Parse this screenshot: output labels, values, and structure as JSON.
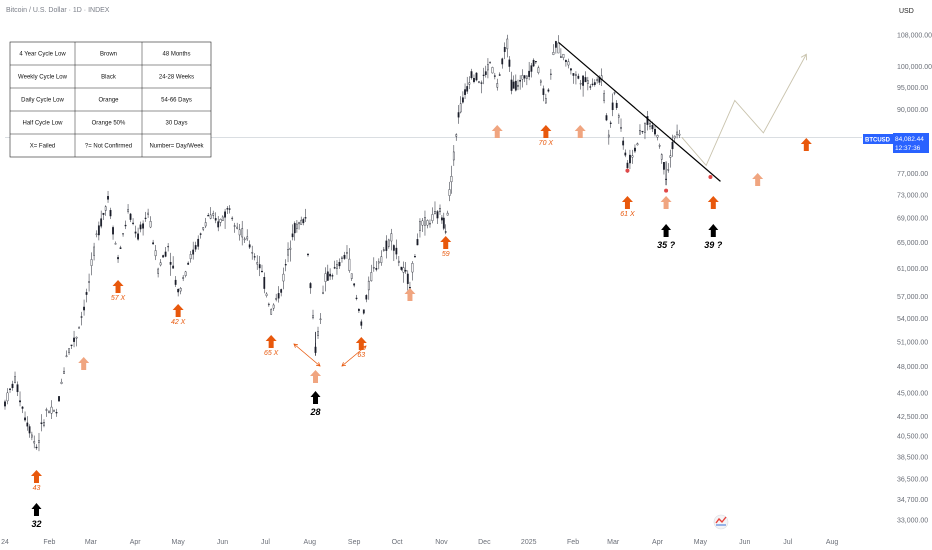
{
  "header": {
    "title": "Bitcoin / U.S. Dollar · 1D · INDEX",
    "currency": "USD"
  },
  "price_tag": {
    "symbol": "BTCUSD",
    "price": "84,082.44",
    "countdown": "12:37:36"
  },
  "legend_table": [
    [
      "4 Year Cycle Low",
      "Brown",
      "48 Months"
    ],
    [
      "Weekly Cycle Low",
      "Black",
      "24-28 Weeks"
    ],
    [
      "Daily Cycle Low",
      "Orange",
      "54-66 Days"
    ],
    [
      "Half Cycle Low",
      "Orange 50%",
      "30 Days"
    ],
    [
      "X= Failed",
      "?= Not Confirmed",
      "Number= Day/Week"
    ]
  ],
  "colors": {
    "orange": "#e8580c",
    "light_orange": "#f0a580",
    "black": "#000000",
    "price_line": "#c8cdd6",
    "tag": "#2962ff"
  },
  "annotations": [
    {
      "date": "2024-01-23",
      "text": "43",
      "color": "orange",
      "kind": "arrow"
    },
    {
      "date": "2024-01-23",
      "text": "32",
      "color": "black",
      "kind": "arrow"
    },
    {
      "date": "2024-02-25",
      "text": "",
      "color": "light_orange",
      "kind": "arrow"
    },
    {
      "date": "2024-03-20",
      "text": "57 X",
      "color": "orange",
      "kind": "arrow"
    },
    {
      "date": "2024-05-01",
      "text": "42 X",
      "color": "orange",
      "kind": "arrow"
    },
    {
      "date": "2024-07-05",
      "text": "65 X",
      "color": "orange",
      "kind": "arrow"
    },
    {
      "date": "2024-08-05",
      "text": "",
      "color": "light_orange",
      "kind": "arrow"
    },
    {
      "date": "2024-08-05",
      "text": "28",
      "color": "black",
      "kind": "arrow"
    },
    {
      "date": "2024-09-06",
      "text": "63",
      "color": "orange",
      "kind": "arrow"
    },
    {
      "date": "2024-10-10",
      "text": "",
      "color": "light_orange",
      "kind": "arrow"
    },
    {
      "date": "2024-11-04",
      "text": "59",
      "color": "orange",
      "kind": "arrow"
    },
    {
      "date": "2024-12-10",
      "text": "",
      "color": "light_orange",
      "kind": "arrow"
    },
    {
      "date": "2025-01-13",
      "text": "70 X",
      "color": "orange",
      "kind": "arrow"
    },
    {
      "date": "2025-02-06",
      "text": "",
      "color": "light_orange",
      "kind": "arrow"
    },
    {
      "date": "2025-03-11",
      "text": "61 X",
      "color": "orange",
      "kind": "arrow"
    },
    {
      "date": "2025-04-07",
      "text": "",
      "color": "light_orange",
      "kind": "arrow"
    },
    {
      "date": "2025-04-07",
      "text": "35 ?",
      "color": "black",
      "kind": "arrow"
    },
    {
      "date": "2025-05-10",
      "text": "",
      "color": "orange",
      "kind": "arrow"
    },
    {
      "date": "2025-05-10",
      "text": "39 ?",
      "color": "black",
      "kind": "arrow"
    },
    {
      "date": "2025-06-10",
      "text": "",
      "color": "light_orange",
      "kind": "arrow"
    },
    {
      "date": "2025-07-14",
      "text": "",
      "color": "orange",
      "kind": "arrow"
    }
  ],
  "chart_data": {
    "type": "line",
    "title": "Bitcoin / U.S. Dollar · 1D · INDEX",
    "xlabel": "",
    "ylabel": "",
    "log_scale": true,
    "ylim": [
      33000,
      112000
    ],
    "xlim": [
      "2024-01-01",
      "2025-08-31"
    ],
    "x_ticks": [
      "24",
      "Feb",
      "Mar",
      "Apr",
      "May",
      "Jun",
      "Jul",
      "Aug",
      "Sep",
      "Oct",
      "Nov",
      "Dec",
      "2025",
      "Feb",
      "Mar",
      "Apr",
      "May",
      "Jun",
      "Jul",
      "Aug"
    ],
    "y_ticks": [
      "108,000.00",
      "100,000.00",
      "95,000.00",
      "90,000.00",
      "84,082.44",
      "77,000.00",
      "73,000.00",
      "69,000.00",
      "65,000.00",
      "61,000.00",
      "57,000.00",
      "54,000.00",
      "51,000.00",
      "48,000.00",
      "45,000.00",
      "42,500.00",
      "40,500.00",
      "38,500.00",
      "36,500.00",
      "34,700.00",
      "33,000.00"
    ],
    "series": [
      {
        "values": [
          [
            "2024-01-01",
            44000
          ],
          [
            "2024-01-08",
            46500
          ],
          [
            "2024-01-15",
            42500
          ],
          [
            "2024-01-23",
            39500
          ],
          [
            "2024-01-30",
            43000
          ],
          [
            "2024-02-06",
            42800
          ],
          [
            "2024-02-13",
            49500
          ],
          [
            "2024-02-20",
            51800
          ],
          [
            "2024-02-27",
            57000
          ],
          [
            "2024-03-05",
            66000
          ],
          [
            "2024-03-13",
            72500
          ],
          [
            "2024-03-20",
            62500
          ],
          [
            "2024-03-27",
            70000
          ],
          [
            "2024-04-03",
            66000
          ],
          [
            "2024-04-10",
            70000
          ],
          [
            "2024-04-17",
            61000
          ],
          [
            "2024-04-24",
            64500
          ],
          [
            "2024-05-01",
            57500
          ],
          [
            "2024-05-08",
            62000
          ],
          [
            "2024-05-15",
            65000
          ],
          [
            "2024-05-22",
            69500
          ],
          [
            "2024-05-29",
            68000
          ],
          [
            "2024-06-06",
            71000
          ],
          [
            "2024-06-13",
            67000
          ],
          [
            "2024-06-20",
            64500
          ],
          [
            "2024-06-27",
            61500
          ],
          [
            "2024-07-05",
            55000
          ],
          [
            "2024-07-12",
            58000
          ],
          [
            "2024-07-20",
            67000
          ],
          [
            "2024-07-29",
            69000
          ],
          [
            "2024-08-05",
            50000
          ],
          [
            "2024-08-12",
            59500
          ],
          [
            "2024-08-20",
            61000
          ],
          [
            "2024-08-27",
            63500
          ],
          [
            "2024-09-06",
            53500
          ],
          [
            "2024-09-13",
            60000
          ],
          [
            "2024-09-20",
            63000
          ],
          [
            "2024-09-27",
            66000
          ],
          [
            "2024-10-04",
            61000
          ],
          [
            "2024-10-10",
            59000
          ],
          [
            "2024-10-17",
            67500
          ],
          [
            "2024-10-24",
            68500
          ],
          [
            "2024-10-31",
            70000
          ],
          [
            "2024-11-04",
            67500
          ],
          [
            "2024-11-08",
            76500
          ],
          [
            "2024-11-13",
            89000
          ],
          [
            "2024-11-22",
            98500
          ],
          [
            "2024-11-29",
            96000
          ],
          [
            "2024-12-05",
            101000
          ],
          [
            "2024-12-10",
            95500
          ],
          [
            "2024-12-17",
            106000
          ],
          [
            "2024-12-20",
            95500
          ],
          [
            "2024-12-26",
            96000
          ],
          [
            "2025-01-06",
            101500
          ],
          [
            "2025-01-13",
            92000
          ],
          [
            "2025-01-20",
            105500
          ],
          [
            "2025-01-27",
            101500
          ],
          [
            "2025-02-03",
            97500
          ],
          [
            "2025-02-13",
            96000
          ],
          [
            "2025-02-21",
            97000
          ],
          [
            "2025-02-26",
            84500
          ],
          [
            "2025-03-02",
            94000
          ],
          [
            "2025-03-11",
            78500
          ],
          [
            "2025-03-18",
            83000
          ],
          [
            "2025-03-25",
            87500
          ],
          [
            "2025-04-01",
            84500
          ],
          [
            "2025-04-07",
            76500
          ],
          [
            "2025-04-13",
            84500
          ],
          [
            "2025-04-18",
            84082.44
          ]
        ]
      },
      {
        "values": [
          [
            "2025-04-18",
            84082.44
          ],
          [
            "2025-05-05",
            78500
          ],
          [
            "2025-05-25",
            92000
          ],
          [
            "2025-06-14",
            85000
          ],
          [
            "2025-07-14",
            103000
          ]
        ]
      }
    ],
    "trendline": [
      [
        "2025-01-22",
        106000
      ],
      [
        "2025-05-15",
        75500
      ]
    ],
    "horizontal_line": 84082.44
  }
}
